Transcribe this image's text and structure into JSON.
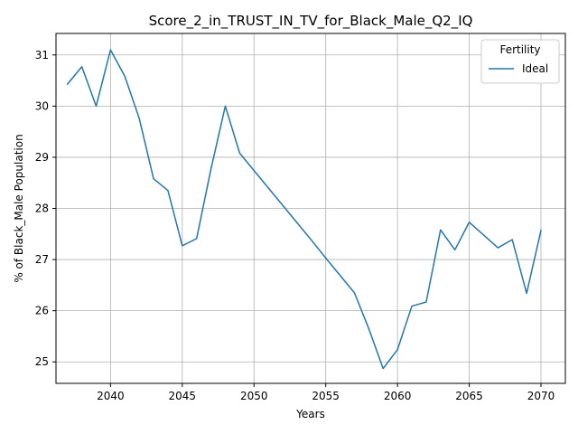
{
  "chart_data": {
    "type": "line",
    "title": "Score_2_in_TRUST_IN_TV_for_Black_Male_Q2_IQ",
    "xlabel": "Years",
    "ylabel": "% of Black_Male Population",
    "xlim": [
      2036.2,
      2071.7
    ],
    "ylim": [
      24.58,
      31.42
    ],
    "xticks": [
      2040,
      2045,
      2050,
      2055,
      2060,
      2065,
      2070
    ],
    "yticks": [
      25,
      26,
      27,
      28,
      29,
      30,
      31
    ],
    "grid": true,
    "legend": {
      "title": "Fertility",
      "position": "top-right"
    },
    "series": [
      {
        "name": "Ideal",
        "color": "#1f77b4",
        "x": [
          2037,
          2038,
          2039,
          2040,
          2041,
          2042,
          2043,
          2044,
          2045,
          2046,
          2047,
          2048,
          2049,
          2050,
          2051,
          2052,
          2053,
          2054,
          2055,
          2056,
          2057,
          2058,
          2059,
          2060,
          2061,
          2062,
          2063,
          2064,
          2065,
          2066,
          2067,
          2068,
          2069,
          2070
        ],
        "y": [
          30.43,
          30.77,
          30.0,
          31.1,
          30.58,
          29.76,
          28.58,
          28.35,
          27.27,
          27.41,
          28.77,
          30.0,
          29.08,
          28.74,
          28.4,
          28.06,
          27.72,
          27.38,
          27.03,
          26.69,
          26.35,
          25.65,
          24.87,
          25.24,
          26.09,
          26.17,
          27.58,
          27.19,
          27.73,
          27.48,
          27.23,
          27.39,
          26.34,
          27.57
        ]
      }
    ]
  }
}
